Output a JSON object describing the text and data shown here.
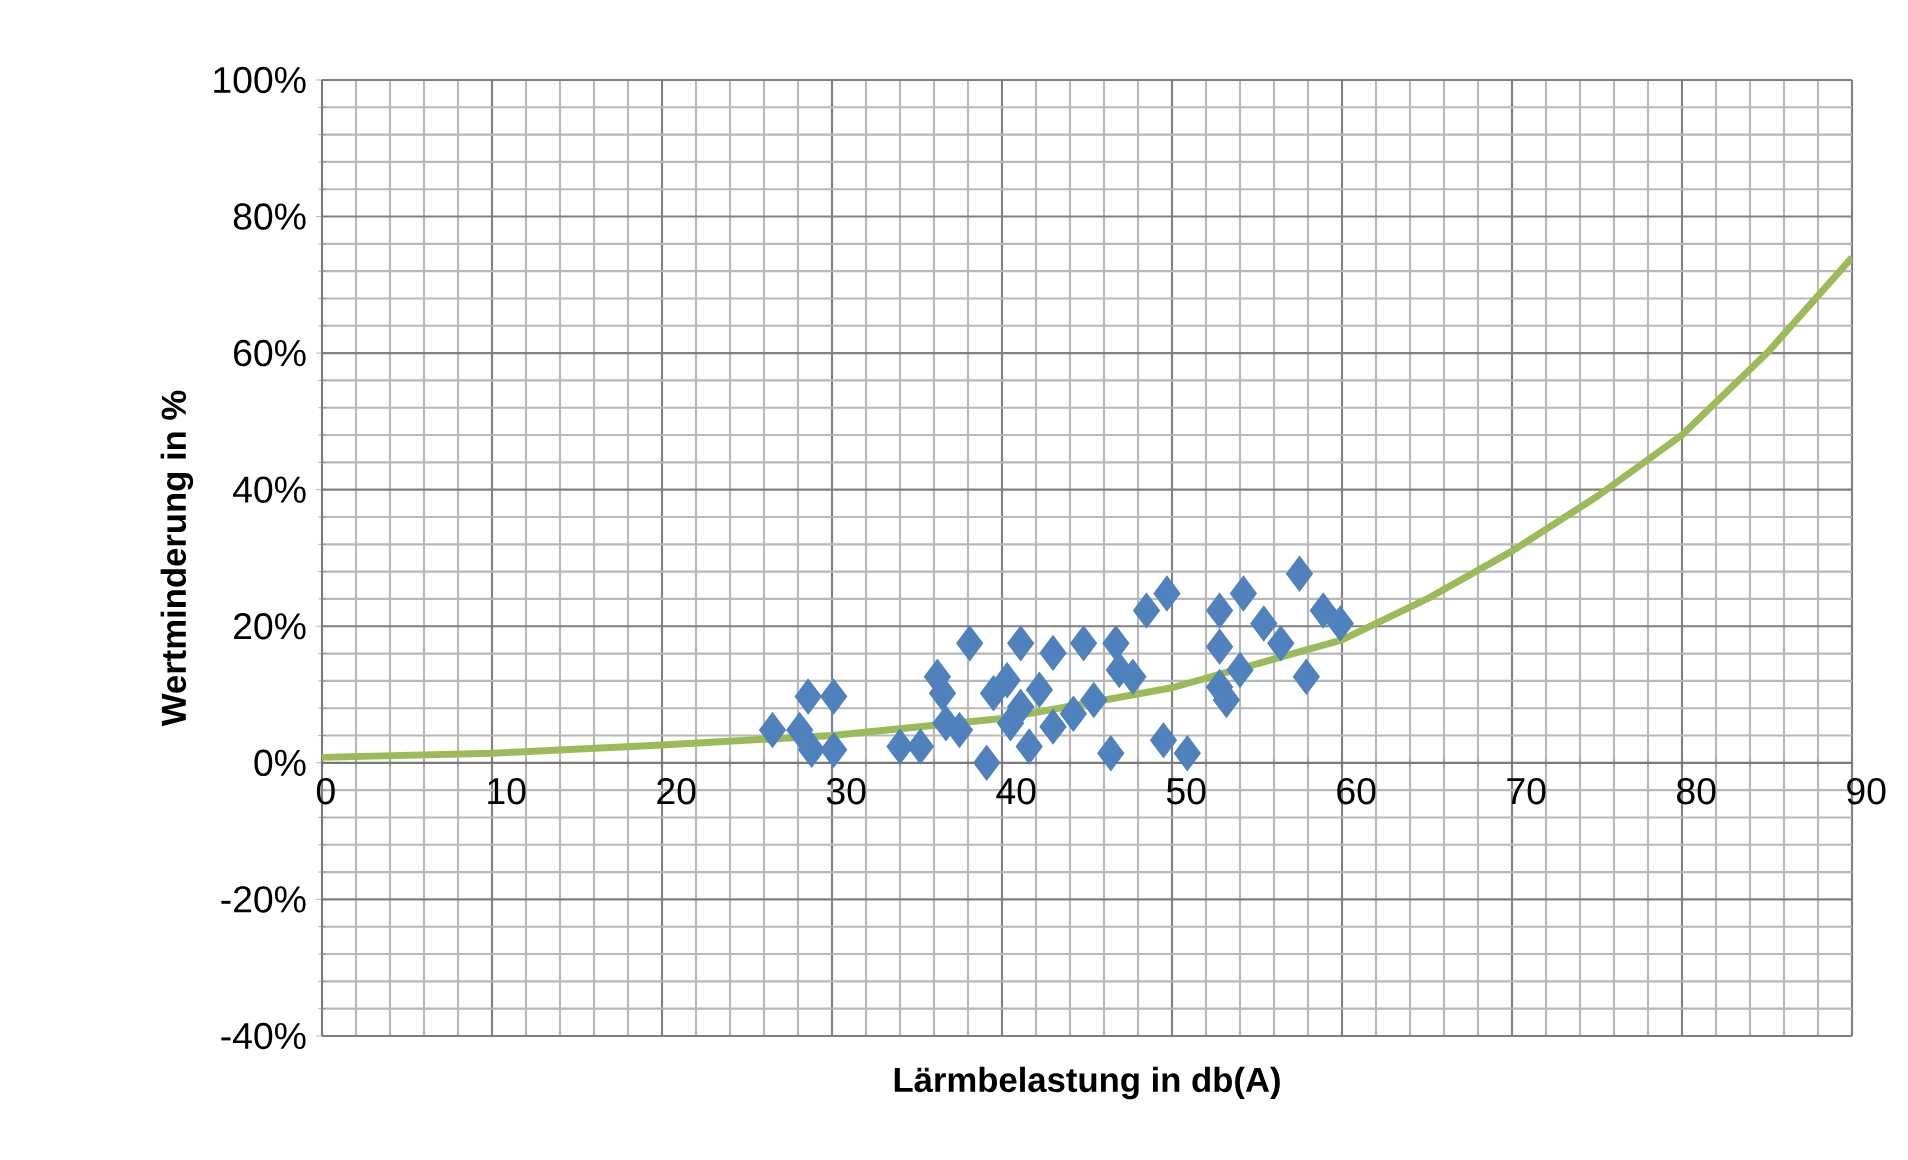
{
  "chart_data": {
    "type": "scatter",
    "xlabel": "Lärmbelastung in db(A)",
    "ylabel": "Wertminderung in %",
    "xlim": [
      0,
      90
    ],
    "xticks": [
      0,
      10,
      20,
      30,
      40,
      50,
      60,
      70,
      80,
      90
    ],
    "ylim": [
      -40,
      100
    ],
    "yticks": [
      {
        "value": -40,
        "label": "-40%"
      },
      {
        "value": -20,
        "label": "-20%"
      },
      {
        "value": 0,
        "label": "0%"
      },
      {
        "value": 20,
        "label": "20%"
      },
      {
        "value": 40,
        "label": "40%"
      },
      {
        "value": 60,
        "label": "60%"
      },
      {
        "value": 80,
        "label": "80%"
      },
      {
        "value": 100,
        "label": "100%"
      }
    ],
    "grid": true,
    "series": [
      {
        "type": "scatter",
        "marker": "diamond",
        "color": "#4f81bd",
        "x": [
          26.5,
          28.6,
          30.1,
          28.1,
          28.8,
          30.1,
          34.0,
          35.2,
          36.2,
          36.5,
          36.7,
          37.5,
          38.1,
          39.1,
          39.5,
          40.3,
          41.1,
          40.5,
          41.1,
          41.6,
          42.2,
          43.0,
          43.0,
          44.2,
          44.8,
          45.4,
          46.4,
          46.7,
          46.9,
          47.7,
          48.5,
          49.7,
          49.5,
          50.9,
          52.8,
          52.8,
          52.8,
          53.2,
          54.0,
          54.2,
          55.4,
          56.4,
          57.5,
          57.9,
          58.9,
          59.9
        ],
        "values": [
          4.8,
          9.7,
          9.7,
          4.8,
          1.9,
          1.9,
          2.4,
          2.4,
          12.6,
          10.2,
          5.8,
          4.8,
          17.5,
          0,
          10.2,
          12.1,
          17.5,
          5.8,
          8.2,
          2.4,
          10.7,
          16.1,
          5.3,
          7.2,
          17.5,
          9.2,
          1.4,
          17.5,
          13.6,
          12.6,
          22.3,
          24.8,
          3.3,
          1.4,
          22.3,
          17.0,
          11.1,
          9.2,
          13.6,
          24.8,
          20.4,
          17.5,
          27.7,
          12.6,
          22.3,
          20.4
        ]
      },
      {
        "type": "line",
        "marker": "none",
        "line_style": "solid",
        "color": "#9bbb59",
        "x": [
          0,
          10,
          20,
          30,
          40,
          50,
          60,
          65,
          70,
          75,
          80,
          85,
          90
        ],
        "values": [
          0.8,
          1.4,
          2.6,
          4,
          6.5,
          11,
          18,
          24,
          31,
          39,
          48,
          60,
          74
        ]
      }
    ]
  }
}
